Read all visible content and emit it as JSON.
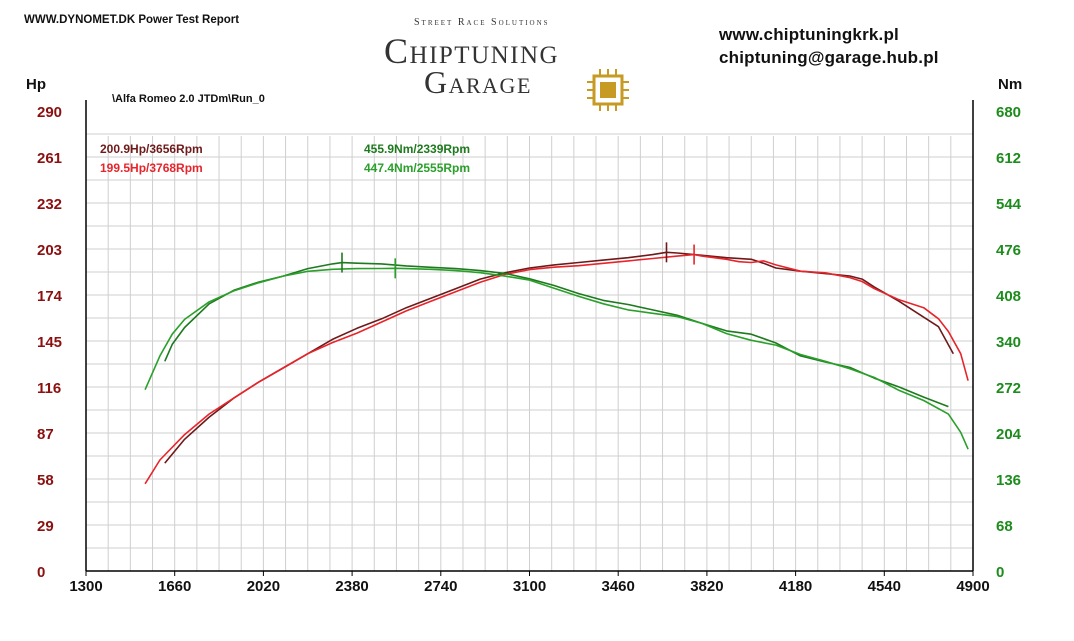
{
  "header": {
    "report_title": "WWW.DYNOMET.DK  Power Test Report",
    "logo_tagline": "Street Race Solutions",
    "logo_line1": "Chiptuning",
    "logo_line2": "Garage",
    "website": "www.chiptuningkrk.pl",
    "email": "chiptuning@garage.hub.pl",
    "run_label": "\\Alfa Romeo 2.0 JTDm\\Run_0"
  },
  "colors": {
    "hp_axis": "#8b1010",
    "nm_axis": "#1c8c1c",
    "hp_run1": "#6e1a1a",
    "hp_run2": "#e8242b",
    "nm_run1": "#1e7a1e",
    "nm_run2": "#2aa02a",
    "grid": "#cfcfcf"
  },
  "peaks": {
    "hp_run1": "200.9Hp/3656Rpm",
    "hp_run2": "199.5Hp/3768Rpm",
    "nm_run1": "455.9Nm/2339Rpm",
    "nm_run2": "447.4Nm/2555Rpm"
  },
  "chart_data": {
    "type": "line",
    "xlabel": "",
    "x_ticks": [
      1300,
      1660,
      2020,
      2380,
      2740,
      3100,
      3460,
      3820,
      4180,
      4540,
      4900
    ],
    "xlim": [
      1300,
      4900
    ],
    "y_left": {
      "label": "Hp",
      "ticks": [
        0,
        29,
        58,
        87,
        116,
        145,
        174,
        203,
        232,
        261,
        290
      ],
      "ylim": [
        0,
        290
      ]
    },
    "y_right": {
      "label": "Nm",
      "ticks": [
        0,
        68,
        136,
        204,
        272,
        340,
        408,
        476,
        544,
        612,
        680
      ],
      "ylim": [
        0,
        680
      ]
    },
    "grid": true,
    "series": [
      {
        "key": "hp_run1",
        "axis": "left",
        "peak_marker_x": 3656,
        "x": [
          1620,
          1700,
          1800,
          1900,
          2000,
          2100,
          2200,
          2300,
          2400,
          2500,
          2600,
          2700,
          2800,
          2900,
          3000,
          3100,
          3200,
          3300,
          3400,
          3500,
          3600,
          3656,
          3700,
          3800,
          3900,
          4000,
          4050,
          4100,
          4200,
          4300,
          4400,
          4450,
          4500,
          4600,
          4700,
          4760,
          4820
        ],
        "values": [
          68,
          83,
          97,
          109,
          119,
          128,
          137,
          146,
          153,
          159,
          166,
          172,
          178,
          184,
          188,
          191,
          193,
          194.5,
          196,
          197.5,
          199.5,
          200.9,
          200.5,
          199,
          197.5,
          196.5,
          194,
          191,
          189,
          187.5,
          186,
          184,
          179,
          170,
          160,
          154,
          137
        ]
      },
      {
        "key": "hp_run2",
        "axis": "left",
        "peak_marker_x": 3768,
        "x": [
          1540,
          1600,
          1700,
          1800,
          1900,
          2000,
          2100,
          2200,
          2300,
          2400,
          2500,
          2600,
          2700,
          2800,
          2900,
          3000,
          3100,
          3200,
          3300,
          3400,
          3500,
          3600,
          3700,
          3768,
          3800,
          3900,
          3950,
          4000,
          4050,
          4100,
          4200,
          4300,
          4400,
          4450,
          4500,
          4600,
          4700,
          4760,
          4800,
          4850,
          4880
        ],
        "values": [
          55,
          70,
          86,
          99,
          109,
          119,
          128,
          137,
          144,
          150,
          157,
          164,
          170,
          176,
          182,
          187,
          190,
          191.5,
          192.5,
          194,
          195.5,
          197,
          198.5,
          199.5,
          198.5,
          196.5,
          195,
          194.5,
          195.5,
          193,
          189,
          188,
          185,
          182.5,
          178,
          171,
          166,
          159,
          151,
          137,
          120
        ]
      },
      {
        "key": "nm_run1",
        "axis": "right",
        "peak_marker_x": 2339,
        "x": [
          1620,
          1650,
          1700,
          1800,
          1900,
          2000,
          2100,
          2200,
          2300,
          2339,
          2400,
          2500,
          2600,
          2700,
          2800,
          2900,
          3000,
          3100,
          3200,
          3300,
          3400,
          3500,
          3600,
          3700,
          3800,
          3900,
          4000,
          4100,
          4200,
          4300,
          4400,
          4500,
          4600,
          4700,
          4800
        ],
        "values": [
          310,
          335,
          360,
          395,
          415,
          427,
          436,
          447,
          454,
          455.9,
          455,
          454,
          451,
          449,
          447,
          444,
          440,
          432,
          422,
          410,
          400,
          394,
          386,
          378,
          366,
          355,
          350,
          337,
          318,
          309,
          301,
          285,
          272,
          257,
          243
        ]
      },
      {
        "key": "nm_run2",
        "axis": "right",
        "peak_marker_x": 2555,
        "x": [
          1540,
          1600,
          1650,
          1700,
          1800,
          1900,
          2000,
          2100,
          2200,
          2300,
          2400,
          2500,
          2555,
          2600,
          2700,
          2800,
          2900,
          3000,
          3100,
          3200,
          3300,
          3400,
          3500,
          3600,
          3700,
          3800,
          3900,
          4000,
          4100,
          4200,
          4300,
          4400,
          4500,
          4600,
          4700,
          4800,
          4850,
          4880
        ],
        "values": [
          268,
          318,
          350,
          372,
          398,
          414,
          426,
          436,
          443,
          446,
          447,
          447.2,
          447.4,
          447,
          446,
          444,
          441,
          436,
          430,
          418,
          406,
          395,
          386,
          381,
          376,
          366,
          351,
          341,
          334,
          320,
          310,
          299,
          286,
          267,
          252,
          232,
          205,
          180
        ]
      }
    ]
  }
}
